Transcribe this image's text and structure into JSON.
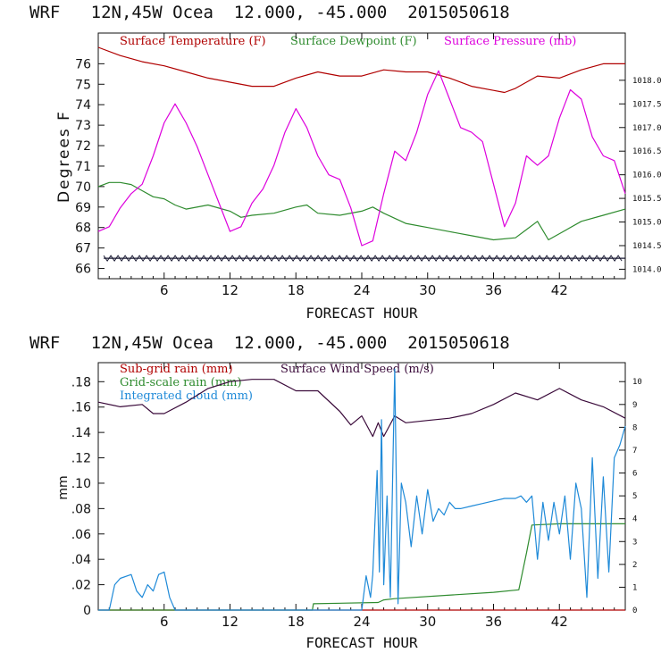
{
  "chart_data": [
    {
      "type": "line",
      "title": "WRF   12N,45W Ocea  12.000, -45.000  2015050618",
      "xlabel": "FORECAST HOUR",
      "ylabel": "Degrees F",
      "xlim": [
        0,
        48
      ],
      "x_ticks": [
        "6",
        "12",
        "18",
        "24",
        "30",
        "36",
        "42"
      ],
      "ylim": [
        65.5,
        77.5
      ],
      "y_ticks": [
        "66",
        "67",
        "68",
        "69",
        "70",
        "71",
        "72",
        "73",
        "74",
        "75",
        "76"
      ],
      "y2lim": [
        1013.8,
        1019.0
      ],
      "y2_ticks": [
        "1014.0",
        "1014.5",
        "1015.0",
        "1015.5",
        "1016.0",
        "1016.5",
        "1017.0",
        "1017.5",
        "1018.0"
      ],
      "series": [
        {
          "name": "Surface Temperature (F)",
          "color": "#b00000",
          "axis": "left",
          "x": [
            0,
            2,
            4,
            6,
            8,
            10,
            12,
            14,
            16,
            18,
            20,
            22,
            24,
            26,
            28,
            30,
            32,
            34,
            36,
            37,
            38,
            40,
            42,
            44,
            46,
            48
          ],
          "values": [
            76.8,
            76.4,
            76.1,
            75.9,
            75.6,
            75.3,
            75.1,
            74.9,
            74.9,
            75.3,
            75.6,
            75.4,
            75.4,
            75.7,
            75.6,
            75.6,
            75.3,
            74.9,
            74.7,
            74.6,
            74.8,
            75.4,
            75.3,
            75.7,
            76.0,
            76.0
          ]
        },
        {
          "name": "Surface Dewpoint (F)",
          "color": "#2e8b2e",
          "axis": "left",
          "x": [
            0,
            1,
            2,
            3,
            4,
            5,
            6,
            7,
            8,
            10,
            12,
            13,
            14,
            16,
            18,
            19,
            20,
            22,
            24,
            25,
            26,
            28,
            30,
            32,
            34,
            36,
            38,
            39,
            40,
            41,
            42,
            44,
            46,
            48
          ],
          "values": [
            70.0,
            70.2,
            70.2,
            70.1,
            69.8,
            69.5,
            69.4,
            69.1,
            68.9,
            69.1,
            68.8,
            68.5,
            68.6,
            68.7,
            69.0,
            69.1,
            68.7,
            68.6,
            68.8,
            69.0,
            68.7,
            68.2,
            68.0,
            67.8,
            67.6,
            67.4,
            67.5,
            67.9,
            68.3,
            67.4,
            67.7,
            68.3,
            68.6,
            68.9
          ]
        },
        {
          "name": "Surface Pressure (mb)",
          "color": "#dd00dd",
          "axis": "right",
          "x": [
            0,
            1,
            2,
            3,
            4,
            5,
            6,
            7,
            8,
            9,
            10,
            11,
            12,
            13,
            14,
            15,
            16,
            17,
            18,
            19,
            20,
            21,
            22,
            23,
            24,
            25,
            26,
            27,
            28,
            29,
            30,
            31,
            32,
            33,
            34,
            35,
            36,
            37,
            38,
            39,
            40,
            41,
            42,
            43,
            44,
            45,
            46,
            47,
            48
          ],
          "values": [
            1014.8,
            1014.9,
            1015.3,
            1015.6,
            1015.8,
            1016.4,
            1017.1,
            1017.5,
            1017.1,
            1016.6,
            1016.0,
            1015.4,
            1014.8,
            1014.9,
            1015.4,
            1015.7,
            1016.2,
            1016.9,
            1017.4,
            1017.0,
            1016.4,
            1016.0,
            1015.9,
            1015.3,
            1014.5,
            1014.6,
            1015.6,
            1016.5,
            1016.3,
            1016.9,
            1017.7,
            1018.2,
            1017.6,
            1017.0,
            1016.9,
            1016.7,
            1015.8,
            1014.9,
            1015.4,
            1016.4,
            1016.2,
            1016.4,
            1017.2,
            1017.8,
            1017.6,
            1016.8,
            1016.4,
            1016.3,
            1015.6
          ]
        },
        {
          "name": "",
          "color": "#1a1a33",
          "axis": "left",
          "x": [
            0.5,
            48
          ],
          "values": [
            66.5,
            66.5
          ]
        }
      ]
    },
    {
      "type": "line",
      "title": "WRF   12N,45W Ocea  12.000, -45.000  2015050618",
      "xlabel": "FORECAST HOUR",
      "ylabel": "mm",
      "xlim": [
        0,
        48
      ],
      "x_ticks": [
        "6",
        "12",
        "18",
        "24",
        "30",
        "36",
        "42"
      ],
      "ylim": [
        0,
        0.195
      ],
      "y_ticks": [
        "0",
        ".02",
        ".04",
        ".06",
        ".08",
        ".10",
        ".12",
        ".14",
        ".16",
        ".18"
      ],
      "y2lim": [
        0,
        10.83
      ],
      "y2_ticks": [
        "0",
        "1",
        "2",
        "3",
        "4",
        "5",
        "6",
        "7",
        "8",
        "9",
        "10"
      ],
      "series": [
        {
          "name": "Sub-grid rain (mm)",
          "color": "#b00000",
          "axis": "left",
          "x": [
            0,
            48
          ],
          "values": [
            0,
            0
          ]
        },
        {
          "name": "Surface Wind Speed (m/s)",
          "color": "#3a0a3a",
          "axis": "right",
          "x": [
            0,
            2,
            4,
            5,
            6,
            8,
            10,
            12,
            14,
            16,
            18,
            20,
            22,
            23,
            24,
            25,
            25.5,
            26,
            27,
            28,
            30,
            32,
            34,
            36,
            38,
            40,
            42,
            44,
            46,
            48
          ],
          "values": [
            9.1,
            8.9,
            9.0,
            8.6,
            8.6,
            9.1,
            9.7,
            10.0,
            10.1,
            10.1,
            9.6,
            9.6,
            8.7,
            8.1,
            8.5,
            7.6,
            8.2,
            7.6,
            8.5,
            8.2,
            8.3,
            8.4,
            8.6,
            9.0,
            9.5,
            9.2,
            9.7,
            9.2,
            8.9,
            8.4
          ]
        },
        {
          "name": "Grid-scale rain (mm)",
          "color": "#2e8b2e",
          "axis": "left",
          "x": [
            0,
            19.5,
            19.6,
            25.5,
            26,
            27,
            36,
            38.3,
            38.5,
            39,
            39.5,
            42,
            48
          ],
          "values": [
            0,
            0,
            0.005,
            0.006,
            0.008,
            0.009,
            0.014,
            0.016,
            0.024,
            0.045,
            0.067,
            0.068,
            0.068
          ]
        },
        {
          "name": "Integrated cloud (mm)",
          "color": "#1f8ad8",
          "axis": "left",
          "x": [
            0,
            1,
            1.5,
            2,
            3,
            3.5,
            4,
            4.5,
            5,
            5.5,
            6,
            6.5,
            7,
            24,
            24.4,
            24.8,
            25,
            25.4,
            25.6,
            25.8,
            26,
            26.3,
            26.6,
            27,
            27.3,
            27.6,
            28,
            28.5,
            29,
            29.5,
            30,
            30.5,
            31,
            31.5,
            32,
            32.5,
            33,
            34,
            35,
            36,
            37,
            38,
            38.5,
            39,
            39.5,
            40,
            40.5,
            41,
            41.5,
            42,
            42.5,
            43,
            43.5,
            44,
            44.5,
            45,
            45.5,
            46,
            46.5,
            47,
            47.5,
            48
          ],
          "values": [
            0,
            0,
            0.02,
            0.025,
            0.028,
            0.015,
            0.01,
            0.02,
            0.015,
            0.028,
            0.03,
            0.01,
            0,
            0,
            0.027,
            0.01,
            0.028,
            0.11,
            0.03,
            0.15,
            0.02,
            0.09,
            0.01,
            0.19,
            0.005,
            0.1,
            0.085,
            0.05,
            0.09,
            0.06,
            0.095,
            0.07,
            0.08,
            0.075,
            0.085,
            0.08,
            0.08,
            0.082,
            0.084,
            0.086,
            0.088,
            0.088,
            0.09,
            0.085,
            0.09,
            0.04,
            0.085,
            0.055,
            0.085,
            0.06,
            0.09,
            0.04,
            0.1,
            0.08,
            0.01,
            0.12,
            0.025,
            0.105,
            0.03,
            0.12,
            0.13,
            0.145
          ]
        }
      ]
    }
  ]
}
